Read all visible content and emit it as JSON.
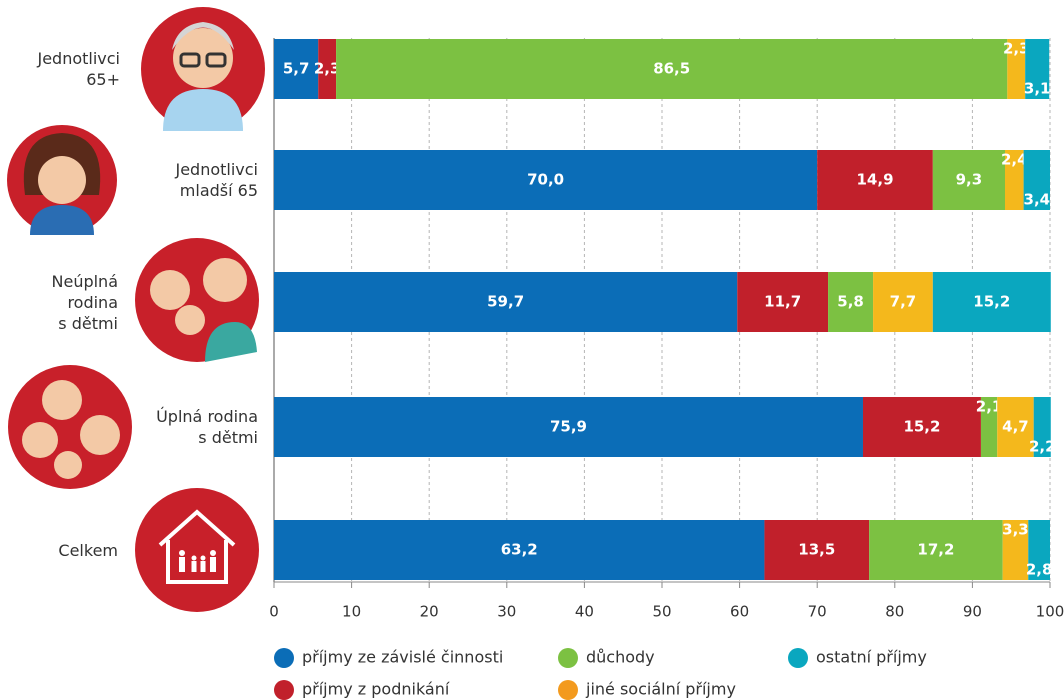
{
  "chart_data": {
    "type": "stacked-bar-horizontal",
    "categories": [
      "Jednotlivci\n65+",
      "Jednotlivci\nmladší 65",
      "Neúplná\nrodina\ns dětmi",
      "Úplná rodina\ns dětmi",
      "Celkem"
    ],
    "series": [
      {
        "name": "příjmy ze závislé činnosti",
        "color": "#0b6db7",
        "values": [
          5.7,
          70.0,
          59.7,
          75.9,
          63.2
        ],
        "value_labels": [
          "5,7",
          "70,0",
          "59,7",
          "75,9",
          "63,2"
        ]
      },
      {
        "name": "příjmy z podnikání",
        "color": "#c1202b",
        "values": [
          2.3,
          14.9,
          11.7,
          15.2,
          13.5
        ],
        "value_labels": [
          "2,3",
          "14,9",
          "11,7",
          "15,2",
          "13,5"
        ]
      },
      {
        "name": "důchody",
        "color": "#7cc142",
        "values": [
          86.5,
          9.3,
          5.8,
          2.1,
          17.2
        ],
        "value_labels": [
          "86,5",
          "9,3",
          "5,8",
          "2,1",
          "17,2"
        ]
      },
      {
        "name": "jiné sociální příjmy",
        "color": "#f4b81c",
        "values": [
          2.3,
          2.4,
          7.7,
          4.7,
          3.3
        ],
        "value_labels": [
          "2,3",
          "2,4",
          "7,7",
          "4,7",
          "3,3"
        ]
      },
      {
        "name": "ostatní příjmy",
        "color": "#0aa7bf",
        "values": [
          3.1,
          3.4,
          15.2,
          2.2,
          2.8
        ],
        "value_labels": [
          "3,1",
          "3,4",
          "15,2",
          "2,2",
          "2,8"
        ]
      }
    ],
    "xlim": [
      0,
      100
    ],
    "xticks": [
      0,
      10,
      20,
      30,
      40,
      50,
      60,
      70,
      80,
      90,
      100
    ],
    "grid": true
  }
}
